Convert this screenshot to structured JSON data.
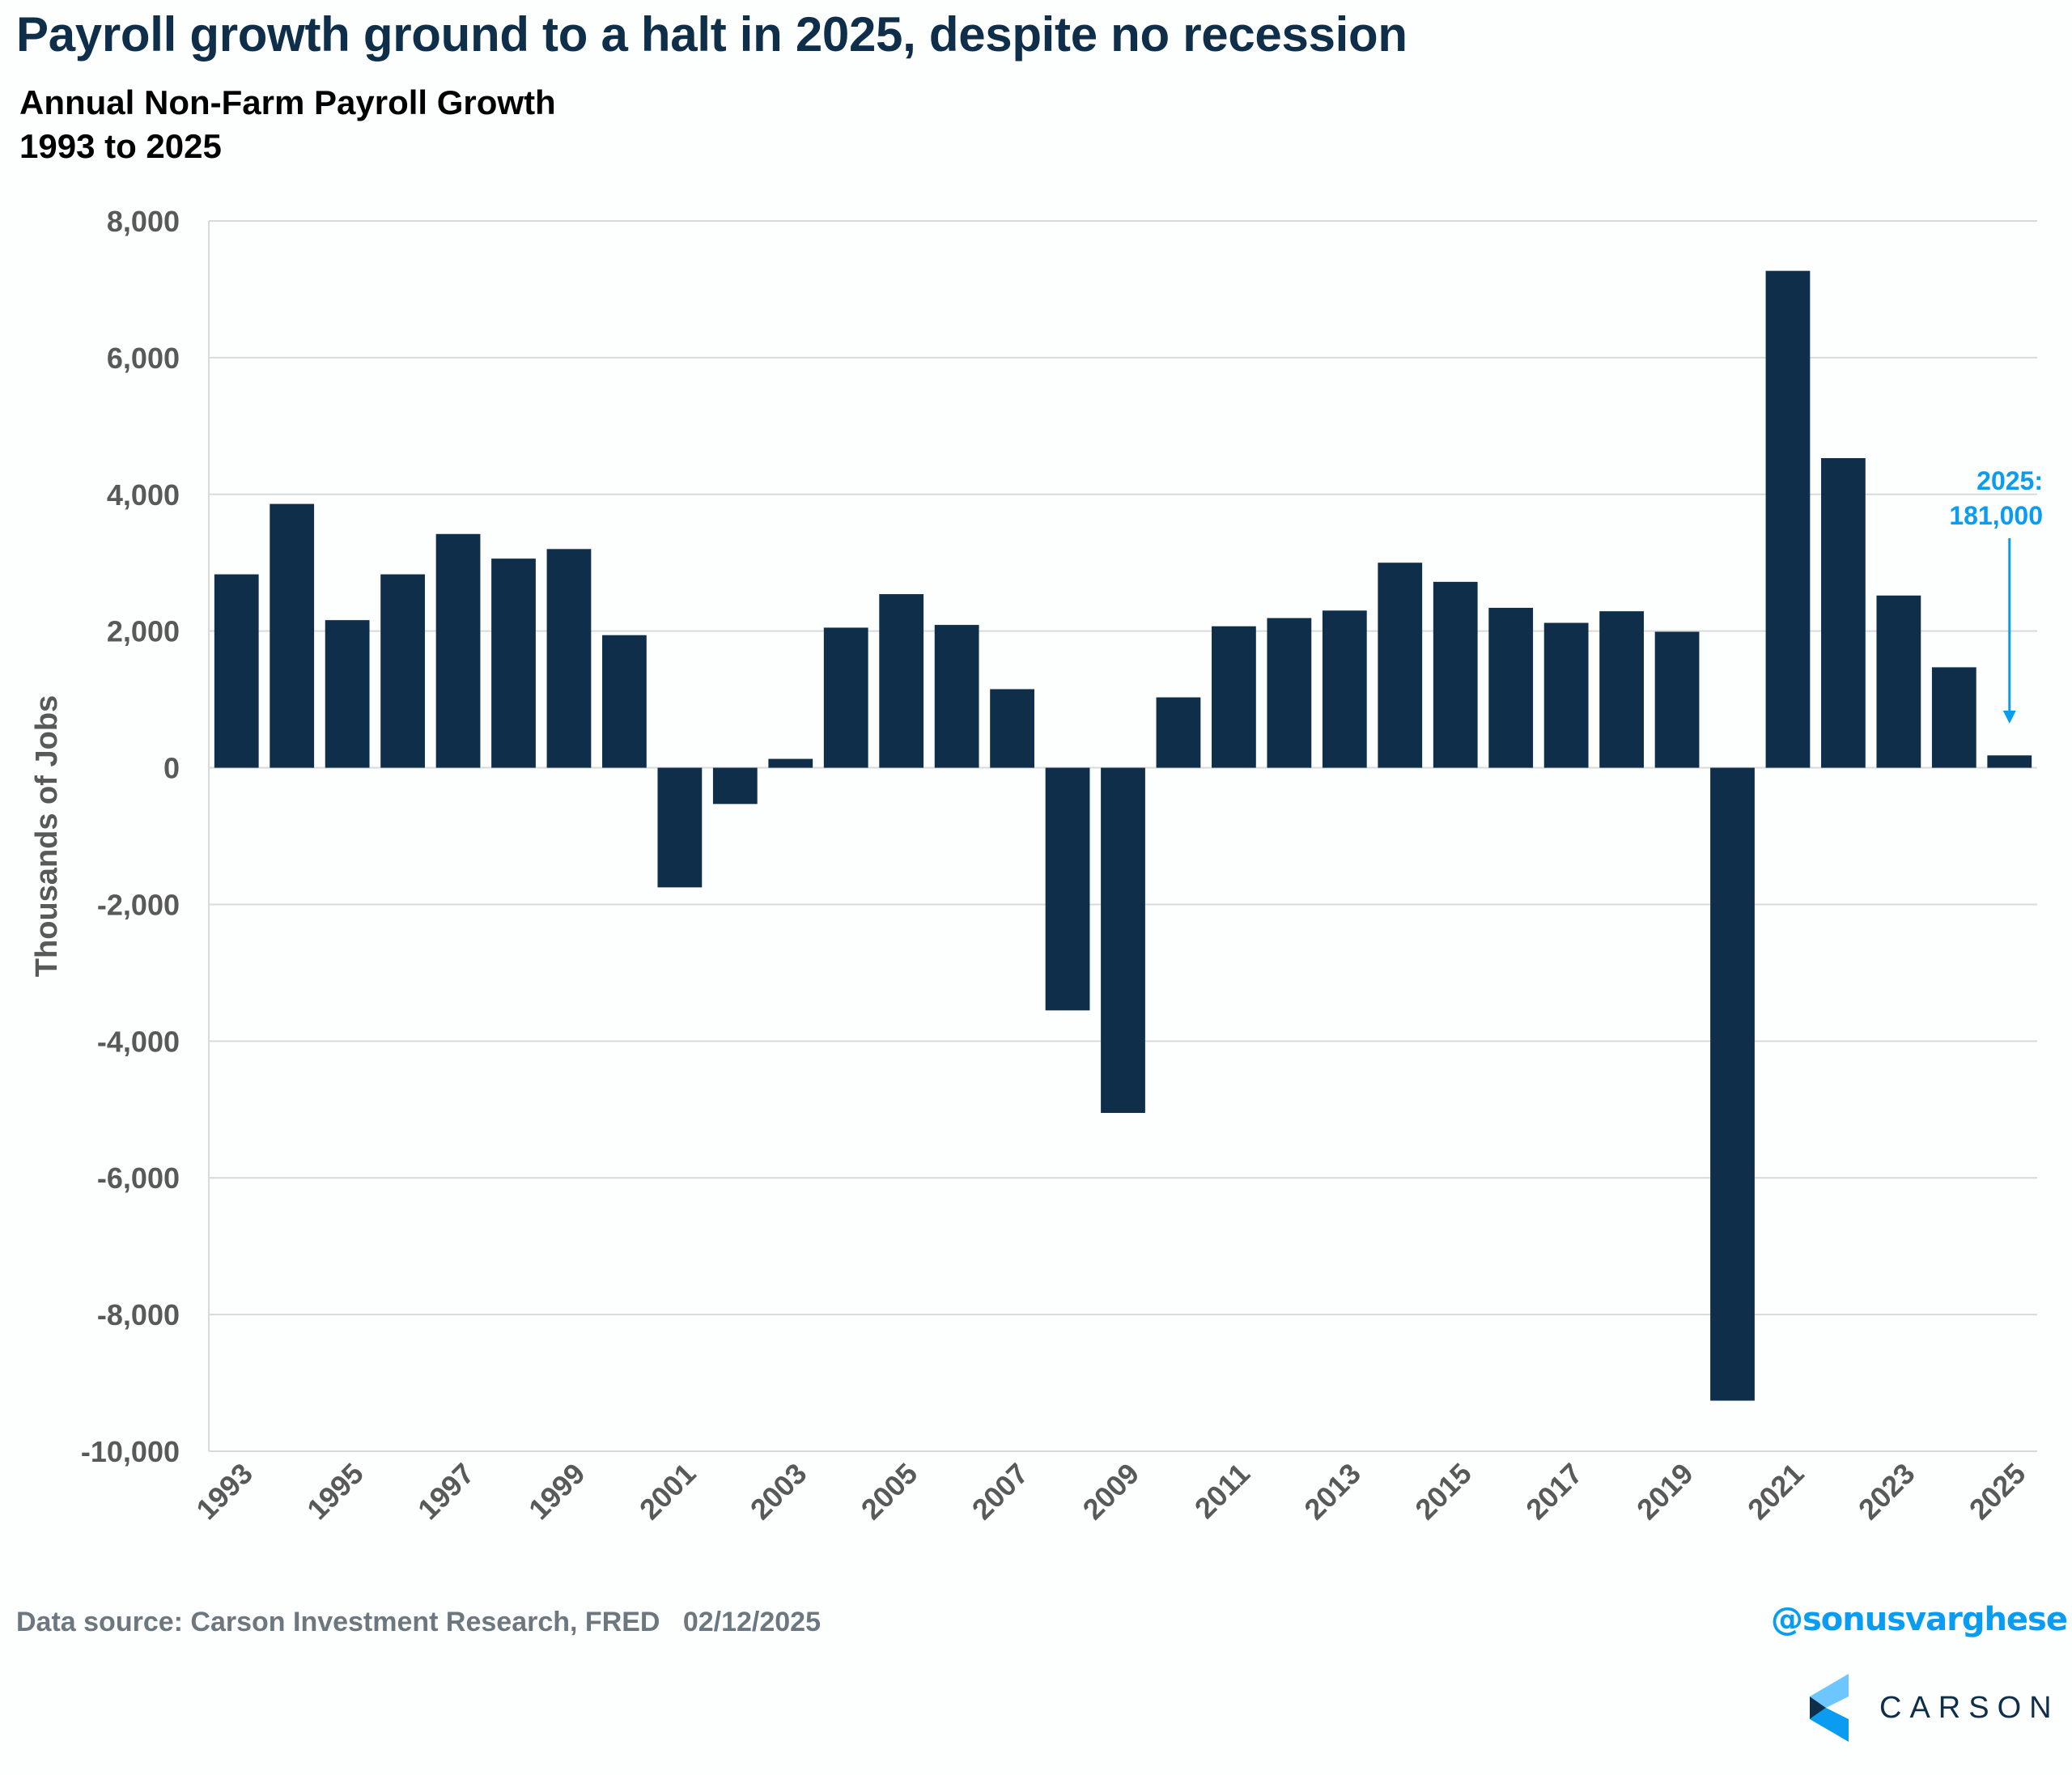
{
  "header": {
    "title": "Payroll growth ground to a halt in 2025, despite no recession",
    "subtitle_line1": "Annual Non-Farm Payroll Growth",
    "subtitle_line2": "1993 to 2025"
  },
  "footer": {
    "source": "Data source: Carson Investment Research, FRED   02/12/2025",
    "handle": "@sonusvarghese",
    "logo_text": "CARSON"
  },
  "colors": {
    "bar": "#0e2e4a",
    "gridline": "#d9d9d9",
    "annotation": "#0a9cf0",
    "title": "#0e2e4a"
  },
  "chart_data": {
    "type": "bar",
    "title": "Annual Non-Farm Payroll Growth",
    "subtitle": "1993 to 2025",
    "xlabel": "",
    "ylabel": "Thousands of Jobs",
    "ylim": [
      -10000,
      8000
    ],
    "yticks": [
      8000,
      6000,
      4000,
      2000,
      0,
      -2000,
      -4000,
      -6000,
      -8000,
      -10000
    ],
    "ytick_labels": [
      "8,000",
      "6,000",
      "4,000",
      "2,000",
      "0",
      "-2,000",
      "-4,000",
      "-6,000",
      "-8,000",
      "-10,000"
    ],
    "grid": true,
    "categories": [
      "1993",
      "1994",
      "1995",
      "1996",
      "1997",
      "1998",
      "1999",
      "2000",
      "2001",
      "2002",
      "2003",
      "2004",
      "2005",
      "2006",
      "2007",
      "2008",
      "2009",
      "2010",
      "2011",
      "2012",
      "2013",
      "2014",
      "2015",
      "2016",
      "2017",
      "2018",
      "2019",
      "2020",
      "2021",
      "2022",
      "2023",
      "2024",
      "2025"
    ],
    "xtick_labels": [
      "1993",
      "1995",
      "1997",
      "1999",
      "2001",
      "2003",
      "2005",
      "2007",
      "2009",
      "2011",
      "2013",
      "2015",
      "2017",
      "2019",
      "2021",
      "2023",
      "2025"
    ],
    "values": [
      2830,
      3860,
      2160,
      2830,
      3420,
      3060,
      3200,
      1940,
      -1750,
      -530,
      130,
      2050,
      2540,
      2090,
      1150,
      -3550,
      -5050,
      1030,
      2070,
      2190,
      2300,
      3000,
      2720,
      2340,
      2120,
      2290,
      1990,
      -9260,
      7270,
      4530,
      2520,
      1470,
      181
    ],
    "annotations": [
      {
        "category": "2025",
        "line1": "2025:",
        "line2": "181,000",
        "arrow": "down"
      }
    ],
    "legend": "none"
  }
}
